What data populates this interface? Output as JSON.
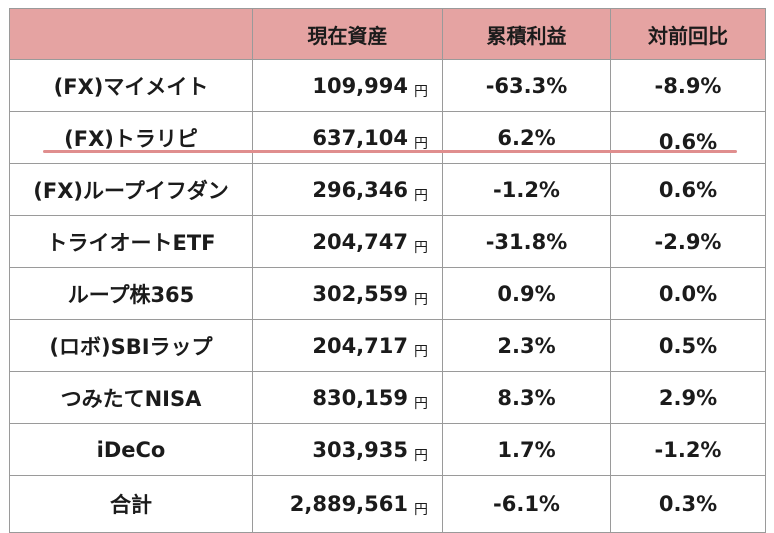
{
  "headers": [
    "",
    "現在資産",
    "累積利益",
    "対前回比"
  ],
  "currency_unit": "円",
  "rows": [
    {
      "name": "(FX)マイメイト",
      "amount": "109,994",
      "profit": "-63.3%",
      "change": "-8.9%"
    },
    {
      "name": "(FX)トラリピ",
      "amount": "637,104",
      "profit": "6.2%",
      "change": "0.6%"
    },
    {
      "name": "(FX)ループイフダン",
      "amount": "296,346",
      "profit": "-1.2%",
      "change": "0.6%"
    },
    {
      "name": "トライオートETF",
      "amount": "204,747",
      "profit": "-31.8%",
      "change": "-2.9%"
    },
    {
      "name": "ループ株365",
      "amount": "302,559",
      "profit": "0.9%",
      "change": "0.0%"
    },
    {
      "name": "(ロボ)SBIラップ",
      "amount": "204,717",
      "profit": "2.3%",
      "change": "0.5%"
    },
    {
      "name": "つみたてNISA",
      "amount": "830,159",
      "profit": "8.3%",
      "change": "2.9%"
    },
    {
      "name": "iDeCo",
      "amount": "303,935",
      "profit": "1.7%",
      "change": "-1.2%"
    }
  ],
  "total": {
    "name": "合計",
    "amount": "2,889,561",
    "profit": "-6.1%",
    "change": "0.3%"
  },
  "colors": {
    "header_bg": "#e5a3a2",
    "highlight_line": "#e08e8e"
  }
}
